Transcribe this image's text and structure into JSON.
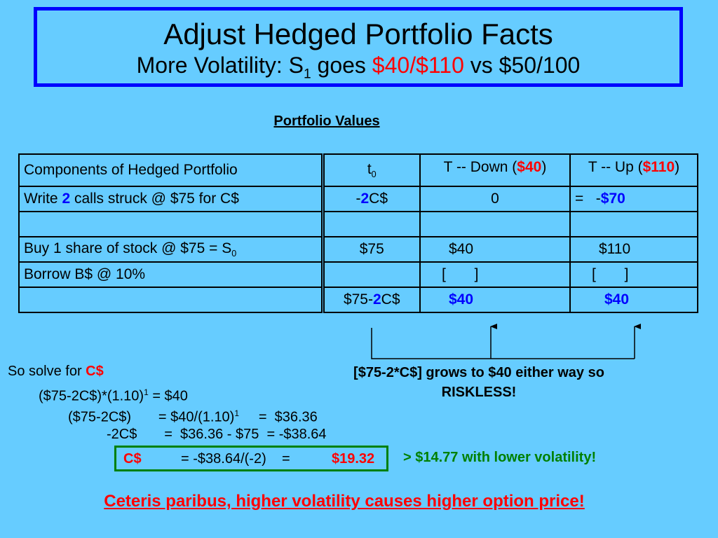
{
  "title": {
    "main": "Adjust Hedged Portfolio Facts",
    "sub_prefix": "More Volatility: S",
    "sub_subscript": "1",
    "sub_goes": " goes ",
    "sub_highlight": "$40/$110",
    "sub_suffix": " vs $50/100"
  },
  "section_heading": "Portfolio Values",
  "table": {
    "header": {
      "components": "Components of Hedged Portfolio",
      "t0": "t",
      "t0_sub": "0",
      "down_prefix": "T -- Down (",
      "down_value": "$40",
      "down_suffix": ")",
      "up_prefix": "T -- Up (",
      "up_value": "$110",
      "up_suffix": ")"
    },
    "row_calls": {
      "label_prefix": "Write ",
      "label_num": "2",
      "label_suffix": " calls struck @ $75 for C$",
      "t0_prefix": "-",
      "t0_num": "2",
      "t0_suffix": "C$",
      "down": "0",
      "up_eq": "=   -",
      "up_value": "$70"
    },
    "row_stock": {
      "label": "Buy 1 share of stock @ $75 = S",
      "label_sub": "0",
      "t0": "$75",
      "down": "$40",
      "up": "$110"
    },
    "row_borrow": {
      "label": "Borrow B$ @ 10%",
      "down": "[       ]",
      "up": "[       ]"
    },
    "row_total": {
      "t0_prefix": "$75-",
      "t0_num": "2",
      "t0_suffix": "C$",
      "down": "$40",
      "up": "$40"
    }
  },
  "solve": {
    "intro_prefix": "So solve for ",
    "intro_var": "C$",
    "line1_a": "($75-2C$)*(1.10)",
    "line1_sup": "1",
    "line1_b": " = $40",
    "line2_a": "($75-2C$)       = $40/(1.10)",
    "line2_sup": "1",
    "line2_b": "     =  $36.36",
    "line3": "-2C$       =  $36.36 - $75  = -$38.64",
    "line4_var": "C$",
    "line4_mid": "= -$38.64/(-2)    =",
    "line4_result": "$19.32"
  },
  "riskless_note": "[$75-2*C$] grows to $40 either way so RISKLESS!",
  "lower_vol_note": "> $14.77 with lower volatility!",
  "conclusion": "Ceteris paribus, higher volatility causes higher option price!",
  "colors": {
    "background": "#66ccff",
    "title_border": "#0000ff",
    "highlight_red": "#ff0000",
    "highlight_blue": "#0000ff",
    "highlight_green": "#008000"
  }
}
